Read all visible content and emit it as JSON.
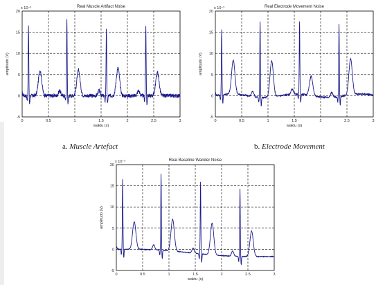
{
  "chart_data": [
    {
      "type": "line",
      "title": "Real Muscle Artifact Noise",
      "xlabel": "waktu (s)",
      "ylabel": "amplitudo (V)",
      "y_exponent": "x 10⁻³",
      "xlim": [
        0,
        3
      ],
      "ylim": [
        -5,
        20
      ],
      "xticks": [
        "0",
        "0.5",
        "1",
        "1.5",
        "2",
        "2.5",
        "3"
      ],
      "yticks": [
        "-5",
        "0",
        "5",
        "10",
        "15",
        "20"
      ],
      "grid": true,
      "series_color": "#1a1a8c",
      "beats": [
        {
          "r_time": 0.12,
          "r_peak": 16.5,
          "t_peak": 6.0
        },
        {
          "r_time": 0.85,
          "r_peak": 18.0,
          "t_peak": 6.0
        },
        {
          "r_time": 1.6,
          "r_peak": 16.0,
          "t_peak": 6.5
        },
        {
          "r_time": 2.35,
          "r_peak": 16.5,
          "t_peak": 5.5
        }
      ],
      "noise_level": 0.9
    },
    {
      "type": "line",
      "title": "Real Electrode Movement Noise",
      "xlabel": "waktu (s)",
      "ylabel": "amplitudo (V)",
      "y_exponent": "x 10⁻³",
      "xlim": [
        0,
        3
      ],
      "ylim": [
        -5,
        20
      ],
      "xticks": [
        "0",
        "0.5",
        "1",
        "1.5",
        "2",
        "2.5",
        "3"
      ],
      "yticks": [
        "-5",
        "0",
        "5",
        "10",
        "15",
        "20"
      ],
      "grid": true,
      "series_color": "#1a1a8c",
      "beats": [
        {
          "r_time": 0.12,
          "r_peak": 15.5,
          "t_peak": 8.0
        },
        {
          "r_time": 0.85,
          "r_peak": 18.0,
          "t_peak": 8.5
        },
        {
          "r_time": 1.6,
          "r_peak": 17.0,
          "t_peak": 4.5
        },
        {
          "r_time": 2.35,
          "r_peak": 17.0,
          "t_peak": 8.5
        }
      ],
      "noise_level": 0.35
    },
    {
      "type": "line",
      "title": "Real Baseline Wander Noise",
      "xlabel": "waktu (s)",
      "ylabel": "amplitudo (V)",
      "y_exponent": "x 10⁻³",
      "xlim": [
        0,
        3
      ],
      "ylim": [
        -5,
        20
      ],
      "xticks": [
        "0",
        "0.5",
        "1",
        "1.5",
        "2",
        "2.5",
        "3"
      ],
      "yticks": [
        "-5",
        "0",
        "5",
        "10",
        "15",
        "20"
      ],
      "grid": true,
      "series_color": "#1a1a8c",
      "beats": [
        {
          "r_time": 0.12,
          "r_peak": 16.5,
          "t_peak": 6.5
        },
        {
          "r_time": 0.85,
          "r_peak": 18.0,
          "t_peak": 7.5
        },
        {
          "r_time": 1.6,
          "r_peak": 17.0,
          "t_peak": 7.5
        },
        {
          "r_time": 2.35,
          "r_peak": 16.0,
          "t_peak": 6.0
        }
      ],
      "noise_level": 0.15
    }
  ],
  "captions": {
    "a_prefix": "a. ",
    "a_text": "Muscle Artefact",
    "b_prefix": "b. ",
    "b_text": "Electrode Movement"
  }
}
